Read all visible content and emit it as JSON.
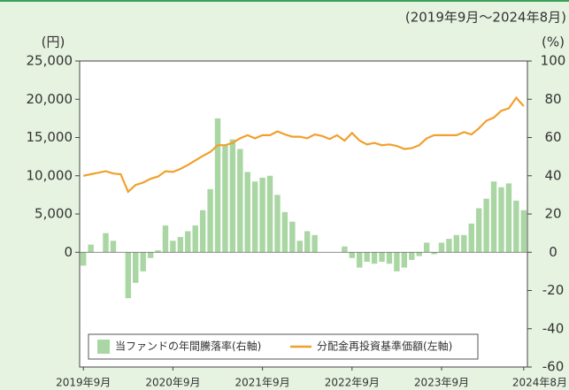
{
  "chart_data": {
    "type": "bar_line",
    "subtitle": "(2019年9月～2024年8月)",
    "ylabel": "(円)",
    "y2label": "(%)",
    "categories": [
      "2019年9月",
      null,
      null,
      null,
      null,
      null,
      null,
      null,
      null,
      null,
      null,
      null,
      "2020年9月",
      null,
      null,
      null,
      null,
      null,
      null,
      null,
      null,
      null,
      null,
      null,
      "2021年9月",
      null,
      null,
      null,
      null,
      null,
      null,
      null,
      null,
      null,
      null,
      null,
      "2022年9月",
      null,
      null,
      null,
      null,
      null,
      null,
      null,
      null,
      null,
      null,
      null,
      "2023年9月",
      null,
      null,
      null,
      null,
      null,
      null,
      null,
      null,
      null,
      null,
      "2024年8月"
    ],
    "series": [
      {
        "name": "当ファンドの年間騰落率(右軸)",
        "color": "#a9d6a3",
        "kind": "bar",
        "axis": "y2",
        "values": [
          -7,
          4,
          0,
          10,
          6,
          0,
          -24,
          -16,
          -10,
          -3,
          1,
          14,
          6,
          8,
          11,
          14,
          22,
          33,
          70,
          56,
          59,
          54,
          42,
          37,
          39,
          40,
          30,
          21,
          16,
          6,
          11,
          9,
          0,
          0,
          0,
          3,
          -3,
          -8,
          -5,
          -6,
          -5,
          -6,
          -10,
          -8,
          -4,
          -2,
          5,
          -1,
          5,
          7,
          9,
          9,
          15,
          23,
          28,
          37,
          34,
          36,
          27,
          22
        ]
      },
      {
        "name": "分配金再投資基準価額(左軸)",
        "color": "#f0a02c",
        "kind": "line",
        "axis": "y",
        "values": [
          10000,
          10200,
          10400,
          10600,
          10300,
          10200,
          7900,
          8800,
          9100,
          9600,
          9900,
          10600,
          10500,
          10900,
          11400,
          12000,
          12600,
          13100,
          14000,
          14000,
          14300,
          14900,
          15300,
          14900,
          15300,
          15300,
          15800,
          15400,
          15100,
          15100,
          14900,
          15400,
          15200,
          14800,
          15300,
          14600,
          15600,
          14600,
          14100,
          14300,
          14000,
          14100,
          13900,
          13500,
          13600,
          14000,
          14900,
          15300,
          15300,
          15300,
          15300,
          15700,
          15400,
          16200,
          17200,
          17600,
          18500,
          18800,
          20200,
          19100
        ]
      }
    ],
    "ylim": [
      -15000,
      25000
    ],
    "yticks": [
      0,
      {
        "value": 5000,
        "label": "5,000"
      },
      {
        "value": 10000,
        "label": "10,000"
      },
      {
        "value": 15000,
        "label": "15,000"
      },
      {
        "value": 20000,
        "label": "20,000"
      },
      {
        "value": 25000,
        "label": "25,000"
      }
    ],
    "y2lim": [
      -60,
      100
    ],
    "y2ticks": [
      -60,
      -40,
      -20,
      0,
      20,
      40,
      60,
      80,
      100
    ],
    "legend": "lower left"
  }
}
